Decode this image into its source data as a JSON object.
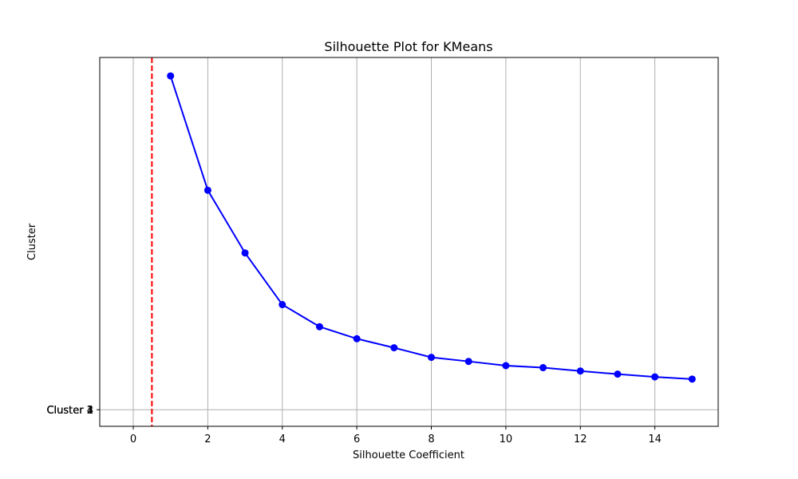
{
  "chart_data": {
    "type": "line",
    "title": "Silhouette Plot for KMeans",
    "xlabel": "Silhouette Coefficient",
    "ylabel": "Cluster",
    "xlim": [
      -0.9,
      15.7
    ],
    "ylim": [
      -0.9,
      19.1
    ],
    "x_ticks": [
      0,
      2,
      4,
      6,
      8,
      10,
      12,
      14
    ],
    "y_tick_labels": [
      "Cluster 1",
      "Cluster 2",
      "Cluster 3",
      "Cluster 4"
    ],
    "grid": true,
    "series": [
      {
        "color": "#0000ff",
        "marker": "circle",
        "x": [
          1,
          2,
          3,
          4,
          5,
          6,
          7,
          8,
          9,
          10,
          11,
          12,
          13,
          14,
          15
        ],
        "y": [
          18.1,
          11.9,
          8.5,
          5.7,
          4.5,
          3.85,
          3.36,
          2.84,
          2.62,
          2.39,
          2.28,
          2.1,
          1.93,
          1.78,
          1.66
        ]
      }
    ],
    "reference_line": {
      "orientation": "vertical",
      "x": 0.5,
      "color": "#ff0000",
      "style": "dashed"
    }
  }
}
